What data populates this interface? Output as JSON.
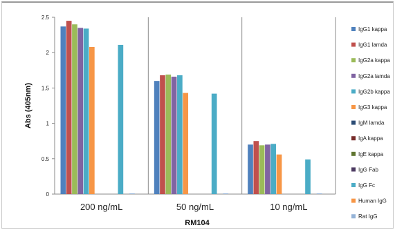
{
  "chart_data": {
    "type": "bar",
    "title": "",
    "xlabel": "RM104",
    "ylabel": "Abs (405nm)",
    "ylim": [
      0,
      2.5
    ],
    "yticks": [
      "0",
      "0.5",
      "1",
      "1.5",
      "2",
      "2.5"
    ],
    "categories": [
      "200 ng/mL",
      "50 ng/mL",
      "10 ng/mL"
    ],
    "grid": false,
    "legend_position": "right",
    "series": [
      {
        "name": "IgG1 kappa",
        "color": "#4f81bd",
        "values": [
          2.37,
          1.6,
          0.7
        ]
      },
      {
        "name": "IgG1 lamda",
        "color": "#c0504d",
        "values": [
          2.45,
          1.68,
          0.75
        ]
      },
      {
        "name": "IgG2a kappa",
        "color": "#9bbb59",
        "values": [
          2.4,
          1.69,
          0.69
        ]
      },
      {
        "name": "IgG2a lamda",
        "color": "#8064a2",
        "values": [
          2.35,
          1.66,
          0.7
        ]
      },
      {
        "name": "IgG2b kappa",
        "color": "#4bacc6",
        "values": [
          2.34,
          1.68,
          0.71
        ]
      },
      {
        "name": "IgG3 kappa",
        "color": "#f79646",
        "values": [
          2.08,
          1.43,
          0.56
        ]
      },
      {
        "name": "IgM lamda",
        "color": "#2c4d75",
        "values": [
          0.0,
          0.0,
          0.0
        ]
      },
      {
        "name": "IgA kappa",
        "color": "#772c2a",
        "values": [
          0.0,
          0.0,
          0.0
        ]
      },
      {
        "name": "IgE kappa",
        "color": "#5f7530",
        "values": [
          0.0,
          0.0,
          0.0
        ]
      },
      {
        "name": "IgG Fab",
        "color": "#4d3b62",
        "values": [
          0.0,
          0.0,
          0.0
        ]
      },
      {
        "name": "IgG Fc",
        "color": "#4bacc6",
        "values": [
          2.11,
          1.42,
          0.49
        ]
      },
      {
        "name": "Human IgG",
        "color": "#f79646",
        "values": [
          0.0,
          0.0,
          0.0
        ]
      },
      {
        "name": "Rat IgG",
        "color": "#95b3d7",
        "values": [
          0.01,
          0.01,
          0.01
        ]
      }
    ]
  }
}
